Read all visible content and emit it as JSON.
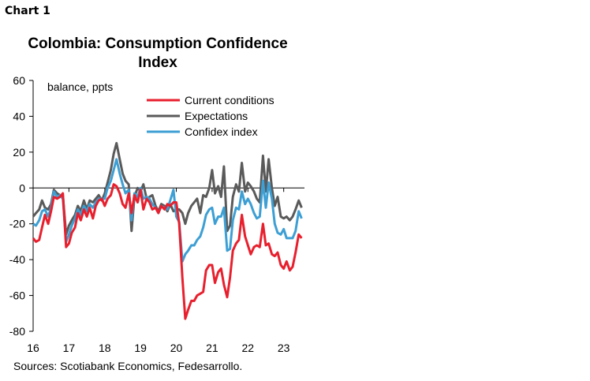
{
  "header": {
    "label": "Chart 1",
    "title": "Colombia: Consumption Confidence Index"
  },
  "footer": {
    "source": "Sources: Scotiabank Economics, Fedesarrollo."
  },
  "colors": {
    "current": "#e8202e",
    "expectations": "#5a5a5a",
    "confidex": "#3d9fd4"
  },
  "chart_data": {
    "type": "line",
    "unit_label": "balance, ppts",
    "ylim": [
      -80,
      60
    ],
    "yticks": [
      -80,
      -60,
      -40,
      -20,
      0,
      20,
      40,
      60
    ],
    "xlim": [
      2016,
      2023.58
    ],
    "xticks": [
      {
        "value": 2016,
        "label": "16"
      },
      {
        "value": 2017,
        "label": "17"
      },
      {
        "value": 2018,
        "label": "18"
      },
      {
        "value": 2019,
        "label": "19"
      },
      {
        "value": 2020,
        "label": "20"
      },
      {
        "value": 2021,
        "label": "21"
      },
      {
        "value": 2022,
        "label": "22"
      },
      {
        "value": 2023,
        "label": "23"
      }
    ],
    "grid": false,
    "legend": "top-right",
    "series": [
      {
        "name": "Current conditions",
        "color_key": "current",
        "points": [
          [
            2016.0,
            -28
          ],
          [
            2016.08,
            -30
          ],
          [
            2016.17,
            -29
          ],
          [
            2016.25,
            -22
          ],
          [
            2016.33,
            -15
          ],
          [
            2016.42,
            -20
          ],
          [
            2016.5,
            -13
          ],
          [
            2016.58,
            -5
          ],
          [
            2016.67,
            -6
          ],
          [
            2016.75,
            -5
          ],
          [
            2016.83,
            -3
          ],
          [
            2016.92,
            -33
          ],
          [
            2017.0,
            -31
          ],
          [
            2017.08,
            -25
          ],
          [
            2017.17,
            -22
          ],
          [
            2017.25,
            -14
          ],
          [
            2017.33,
            -18
          ],
          [
            2017.42,
            -12
          ],
          [
            2017.5,
            -16
          ],
          [
            2017.58,
            -11
          ],
          [
            2017.67,
            -17
          ],
          [
            2017.75,
            -10
          ],
          [
            2017.83,
            -7
          ],
          [
            2017.92,
            -6
          ],
          [
            2018.0,
            -10
          ],
          [
            2018.08,
            -6
          ],
          [
            2018.17,
            -4
          ],
          [
            2018.25,
            2
          ],
          [
            2018.33,
            1
          ],
          [
            2018.42,
            -3
          ],
          [
            2018.5,
            -9
          ],
          [
            2018.58,
            -11
          ],
          [
            2018.67,
            -3
          ],
          [
            2018.75,
            -14
          ],
          [
            2018.83,
            -4
          ],
          [
            2018.92,
            -8
          ],
          [
            2019.0,
            -1
          ],
          [
            2019.08,
            -12
          ],
          [
            2019.17,
            -6
          ],
          [
            2019.25,
            -8
          ],
          [
            2019.33,
            -12
          ],
          [
            2019.42,
            -11
          ],
          [
            2019.5,
            -14
          ],
          [
            2019.58,
            -10
          ],
          [
            2019.67,
            -12
          ],
          [
            2019.75,
            -9
          ],
          [
            2019.83,
            -10
          ],
          [
            2019.92,
            -8
          ],
          [
            2020.0,
            -8
          ],
          [
            2020.08,
            -20
          ],
          [
            2020.17,
            -50
          ],
          [
            2020.25,
            -73
          ],
          [
            2020.33,
            -68
          ],
          [
            2020.42,
            -63
          ],
          [
            2020.5,
            -63
          ],
          [
            2020.58,
            -60
          ],
          [
            2020.67,
            -59
          ],
          [
            2020.75,
            -58
          ],
          [
            2020.83,
            -46
          ],
          [
            2020.92,
            -43
          ],
          [
            2021.0,
            -43
          ],
          [
            2021.08,
            -53
          ],
          [
            2021.17,
            -47
          ],
          [
            2021.25,
            -45
          ],
          [
            2021.33,
            -54
          ],
          [
            2021.42,
            -61
          ],
          [
            2021.5,
            -50
          ],
          [
            2021.58,
            -35
          ],
          [
            2021.67,
            -31
          ],
          [
            2021.75,
            -29
          ],
          [
            2021.83,
            -15
          ],
          [
            2021.92,
            -27
          ],
          [
            2022.0,
            -32
          ],
          [
            2022.08,
            -37
          ],
          [
            2022.17,
            -33
          ],
          [
            2022.25,
            -32
          ],
          [
            2022.33,
            -33
          ],
          [
            2022.42,
            -20
          ],
          [
            2022.5,
            -32
          ],
          [
            2022.58,
            -31
          ],
          [
            2022.67,
            -37
          ],
          [
            2022.75,
            -38
          ],
          [
            2022.83,
            -36
          ],
          [
            2022.92,
            -43
          ],
          [
            2023.0,
            -45
          ],
          [
            2023.08,
            -41
          ],
          [
            2023.17,
            -46
          ],
          [
            2023.25,
            -44
          ],
          [
            2023.33,
            -36
          ],
          [
            2023.42,
            -26
          ],
          [
            2023.5,
            -28
          ]
        ]
      },
      {
        "name": "Expectations",
        "color_key": "expectations",
        "points": [
          [
            2016.0,
            -16
          ],
          [
            2016.08,
            -14
          ],
          [
            2016.17,
            -12
          ],
          [
            2016.25,
            -7
          ],
          [
            2016.33,
            -11
          ],
          [
            2016.42,
            -12
          ],
          [
            2016.5,
            -9
          ],
          [
            2016.58,
            -1
          ],
          [
            2016.67,
            -3
          ],
          [
            2016.75,
            -4
          ],
          [
            2016.83,
            -4
          ],
          [
            2016.92,
            -26
          ],
          [
            2017.0,
            -21
          ],
          [
            2017.08,
            -18
          ],
          [
            2017.17,
            -15
          ],
          [
            2017.25,
            -10
          ],
          [
            2017.33,
            -13
          ],
          [
            2017.42,
            -7
          ],
          [
            2017.5,
            -12
          ],
          [
            2017.58,
            -7
          ],
          [
            2017.67,
            -8
          ],
          [
            2017.75,
            -6
          ],
          [
            2017.83,
            -4
          ],
          [
            2017.92,
            -7
          ],
          [
            2018.0,
            -3
          ],
          [
            2018.08,
            3
          ],
          [
            2018.17,
            10
          ],
          [
            2018.25,
            19
          ],
          [
            2018.33,
            25
          ],
          [
            2018.42,
            16
          ],
          [
            2018.5,
            8
          ],
          [
            2018.58,
            4
          ],
          [
            2018.67,
            2
          ],
          [
            2018.75,
            -24
          ],
          [
            2018.83,
            -5
          ],
          [
            2018.92,
            0
          ],
          [
            2019.0,
            -2
          ],
          [
            2019.08,
            2
          ],
          [
            2019.17,
            -6
          ],
          [
            2019.25,
            -5
          ],
          [
            2019.33,
            -4
          ],
          [
            2019.42,
            -10
          ],
          [
            2019.5,
            -13
          ],
          [
            2019.58,
            -9
          ],
          [
            2019.67,
            -10
          ],
          [
            2019.75,
            -13
          ],
          [
            2019.83,
            -9
          ],
          [
            2019.92,
            -13
          ],
          [
            2020.0,
            -12
          ],
          [
            2020.08,
            -12
          ],
          [
            2020.17,
            -14
          ],
          [
            2020.25,
            -20
          ],
          [
            2020.33,
            -14
          ],
          [
            2020.42,
            -10
          ],
          [
            2020.5,
            -8
          ],
          [
            2020.58,
            -6
          ],
          [
            2020.67,
            -14
          ],
          [
            2020.75,
            -4
          ],
          [
            2020.83,
            -5
          ],
          [
            2020.92,
            0
          ],
          [
            2021.0,
            10
          ],
          [
            2021.08,
            -3
          ],
          [
            2021.17,
            1
          ],
          [
            2021.25,
            -5
          ],
          [
            2021.33,
            12
          ],
          [
            2021.42,
            -24
          ],
          [
            2021.5,
            -21
          ],
          [
            2021.58,
            -5
          ],
          [
            2021.67,
            2
          ],
          [
            2021.75,
            -2
          ],
          [
            2021.83,
            14
          ],
          [
            2021.92,
            -2
          ],
          [
            2022.0,
            3
          ],
          [
            2022.08,
            1
          ],
          [
            2022.17,
            -2
          ],
          [
            2022.25,
            -6
          ],
          [
            2022.33,
            -8
          ],
          [
            2022.42,
            18
          ],
          [
            2022.5,
            -2
          ],
          [
            2022.58,
            16
          ],
          [
            2022.67,
            0
          ],
          [
            2022.75,
            -10
          ],
          [
            2022.83,
            -5
          ],
          [
            2022.92,
            -16
          ],
          [
            2023.0,
            -17
          ],
          [
            2023.08,
            -16
          ],
          [
            2023.17,
            -18
          ],
          [
            2023.25,
            -16
          ],
          [
            2023.33,
            -12
          ],
          [
            2023.42,
            -7
          ],
          [
            2023.5,
            -11
          ]
        ]
      },
      {
        "name": "Confidex index",
        "color_key": "confidex",
        "points": [
          [
            2016.0,
            -20
          ],
          [
            2016.08,
            -21
          ],
          [
            2016.17,
            -18
          ],
          [
            2016.25,
            -13
          ],
          [
            2016.33,
            -12
          ],
          [
            2016.42,
            -16
          ],
          [
            2016.5,
            -11
          ],
          [
            2016.58,
            -2
          ],
          [
            2016.67,
            -5
          ],
          [
            2016.75,
            -4
          ],
          [
            2016.83,
            -6
          ],
          [
            2016.92,
            -30
          ],
          [
            2017.0,
            -26
          ],
          [
            2017.08,
            -21
          ],
          [
            2017.17,
            -17
          ],
          [
            2017.25,
            -12
          ],
          [
            2017.33,
            -15
          ],
          [
            2017.42,
            -10
          ],
          [
            2017.5,
            -13
          ],
          [
            2017.58,
            -9
          ],
          [
            2017.67,
            -11
          ],
          [
            2017.75,
            -8
          ],
          [
            2017.83,
            -6
          ],
          [
            2017.92,
            -6
          ],
          [
            2018.0,
            -6
          ],
          [
            2018.08,
            0
          ],
          [
            2018.17,
            4
          ],
          [
            2018.25,
            10
          ],
          [
            2018.33,
            16
          ],
          [
            2018.42,
            8
          ],
          [
            2018.5,
            2
          ],
          [
            2018.58,
            -3
          ],
          [
            2018.67,
            -1
          ],
          [
            2018.75,
            -18
          ],
          [
            2018.83,
            -3
          ],
          [
            2018.92,
            -5
          ],
          [
            2019.0,
            0
          ],
          [
            2019.08,
            -6
          ],
          [
            2019.17,
            -5
          ],
          [
            2019.25,
            -6
          ],
          [
            2019.33,
            -9
          ],
          [
            2019.42,
            -11
          ],
          [
            2019.5,
            -14
          ],
          [
            2019.58,
            -10
          ],
          [
            2019.67,
            -11
          ],
          [
            2019.75,
            -12
          ],
          [
            2019.83,
            -7
          ],
          [
            2019.92,
            -1
          ],
          [
            2020.0,
            -16
          ],
          [
            2020.08,
            -19
          ],
          [
            2020.17,
            -41
          ],
          [
            2020.25,
            -37
          ],
          [
            2020.33,
            -35
          ],
          [
            2020.42,
            -32
          ],
          [
            2020.5,
            -32
          ],
          [
            2020.58,
            -29
          ],
          [
            2020.67,
            -27
          ],
          [
            2020.75,
            -22
          ],
          [
            2020.83,
            -15
          ],
          [
            2020.92,
            -12
          ],
          [
            2021.0,
            -11
          ],
          [
            2021.08,
            -20
          ],
          [
            2021.17,
            -16
          ],
          [
            2021.25,
            -16
          ],
          [
            2021.33,
            -11
          ],
          [
            2021.42,
            -35
          ],
          [
            2021.5,
            -34
          ],
          [
            2021.58,
            -18
          ],
          [
            2021.67,
            -11
          ],
          [
            2021.75,
            -12
          ],
          [
            2021.83,
            -2
          ],
          [
            2021.92,
            -9
          ],
          [
            2022.0,
            -6
          ],
          [
            2022.08,
            -9
          ],
          [
            2022.17,
            -14
          ],
          [
            2022.25,
            -17
          ],
          [
            2022.33,
            -16
          ],
          [
            2022.42,
            4
          ],
          [
            2022.5,
            -11
          ],
          [
            2022.58,
            3
          ],
          [
            2022.67,
            -6
          ],
          [
            2022.75,
            -20
          ],
          [
            2022.83,
            -25
          ],
          [
            2022.92,
            -26
          ],
          [
            2023.0,
            -23
          ],
          [
            2023.08,
            -28
          ],
          [
            2023.17,
            -28
          ],
          [
            2023.25,
            -28
          ],
          [
            2023.33,
            -24
          ],
          [
            2023.42,
            -13
          ],
          [
            2023.5,
            -17
          ]
        ]
      }
    ]
  }
}
